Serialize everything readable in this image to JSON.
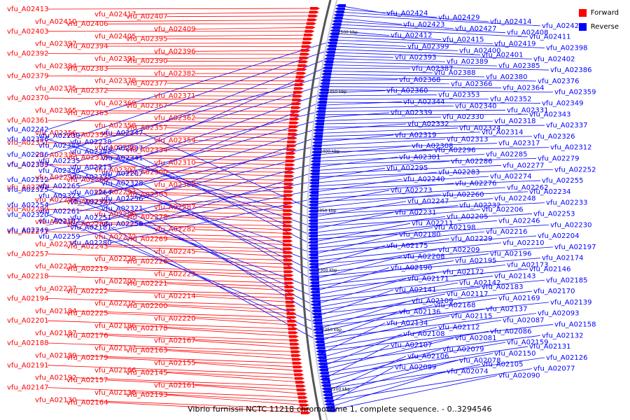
{
  "caption": "Vibrio furnissii NCTC 11218 chromosome 1, complete sequence. - 0..3294546",
  "legend": {
    "forward_label": "Forward",
    "reverse_label": "Reverse",
    "forward_color": "#ff0000",
    "reverse_color": "#0000ff"
  },
  "colors": {
    "backbone": "#555555",
    "ruler": "#cccccc",
    "tick_label": "#000000"
  },
  "kbp_ticks": [
    "2500 kbp",
    "2450 kbp",
    "2400 kbp",
    "2350 kbp",
    "2300 kbp",
    "2250 kbp",
    "2200 kbp"
  ],
  "forward_genes": [
    "vfu_A02413",
    "vfu_A02417",
    "vfu_A02407",
    "vfu_A02410",
    "vfu_A02406",
    "vfu_A02409",
    "vfu_A02403",
    "vfu_A02405",
    "vfu_A02395",
    "vfu_A02397",
    "vfu_A02394",
    "vfu_A02396",
    "vfu_A02392",
    "vfu_A02391",
    "vfu_A02390",
    "vfu_A02384",
    "vfu_A02383",
    "vfu_A02382",
    "vfu_A02379",
    "vfu_A02378",
    "vfu_A02377",
    "vfu_A02375",
    "vfu_A02372",
    "vfu_A02371",
    "vfu_A02370",
    "vfu_A02369",
    "vfu_A02367",
    "vfu_A02365",
    "vfu_A02363",
    "vfu_A02362",
    "vfu_A02361",
    "vfu_A02358",
    "vfu_A02357",
    "vfu_A02356",
    "vfu_A02355",
    "vfu_A02354",
    "vfu_A02351",
    "vfu_A02338",
    "vfu_A02334",
    "vfu_A02315",
    "vfu_A02316",
    "vfu_A02310",
    "vfu_A02309",
    "vfu_A02307",
    "vfu_A02300",
    "vfu_A02298",
    "vfu_A02306",
    "vfu_A02302",
    "vfu_A02292",
    "vfu_A02293",
    "vfu_A02303",
    "vfu_A02297",
    "vfu_A02294",
    "vfu_A02287",
    "vfu_A02289",
    "vfu_A02290",
    "vfu_A02278",
    "vfu_A02291",
    "vfu_A02288",
    "vfu_A02282",
    "vfu_A02271",
    "vfu_A02272",
    "vfu_A02269",
    "vfu_A02275",
    "vfu_A02243",
    "vfu_A02245",
    "vfu_A02257",
    "vfu_A02228",
    "vfu_A02226",
    "vfu_A02224",
    "vfu_A02219",
    "vfu_A02223",
    "vfu_A02218",
    "vfu_A02202",
    "vfu_A02221",
    "vfu_A02227",
    "vfu_A02222",
    "vfu_A02214",
    "vfu_A02194",
    "vfu_A02215",
    "vfu_A02200",
    "vfu_A02184",
    "vfu_A02225",
    "vfu_A02220",
    "vfu_A02201",
    "vfu_A02186",
    "vfu_A02178",
    "vfu_A02187",
    "vfu_A02176",
    "vfu_A02167",
    "vfu_A02188",
    "vfu_A02177",
    "vfu_A02163",
    "vfu_A02189",
    "vfu_A02179",
    "vfu_A02155",
    "vfu_A02191",
    "vfu_A02166",
    "vfu_A02145",
    "vfu_A02192",
    "vfu_A02157",
    "vfu_A02161",
    "vfu_A02147",
    "vfu_A02138",
    "vfu_A02193",
    "vfu_A02130",
    "vfu_A02164"
  ],
  "reverse_genes": [
    "vfu_A02424",
    "vfu_A02429",
    "vfu_A02414",
    "vfu_A02420",
    "vfu_A02423",
    "vfu_A02427",
    "vfu_A02408",
    "vfu_A02411",
    "vfu_A02412",
    "vfu_A02415",
    "vfu_A02419",
    "vfu_A02398",
    "vfu_A02399",
    "vfu_A02400",
    "vfu_A02401",
    "vfu_A02402",
    "vfu_A02393",
    "vfu_A02389",
    "vfu_A02385",
    "vfu_A02386",
    "vfu_A02387",
    "vfu_A02388",
    "vfu_A02380",
    "vfu_A02376",
    "vfu_A02368",
    "vfu_A02366",
    "vfu_A02364",
    "vfu_A02359",
    "vfu_A02360",
    "vfu_A02353",
    "vfu_A02352",
    "vfu_A02349",
    "vfu_A02344",
    "vfu_A02340",
    "vfu_A02331",
    "vfu_A02343",
    "vfu_A02339",
    "vfu_A02330",
    "vfu_A02318",
    "vfu_A02337",
    "vfu_A02332",
    "vfu_A02324",
    "vfu_A02314",
    "vfu_A02326",
    "vfu_A02319",
    "vfu_A02313",
    "vfu_A02317",
    "vfu_A02312",
    "vfu_A02308",
    "vfu_A02296",
    "vfu_A02285",
    "vfu_A02279",
    "vfu_A02301",
    "vfu_A02286",
    "vfu_A02277",
    "vfu_A02252",
    "vfu_A02295",
    "vfu_A02283",
    "vfu_A02274",
    "vfu_A02255",
    "vfu_A02240",
    "vfu_A02276",
    "vfu_A02262",
    "vfu_A02234",
    "vfu_A02273",
    "vfu_A02260",
    "vfu_A02248",
    "vfu_A02233",
    "vfu_A02247",
    "vfu_A02232",
    "vfu_A02206",
    "vfu_A02253",
    "vfu_A02231",
    "vfu_A02205",
    "vfu_A02246",
    "vfu_A02230",
    "vfu_A02211",
    "vfu_A02198",
    "vfu_A02216",
    "vfu_A02204",
    "vfu_A02180",
    "vfu_A02229",
    "vfu_A02210",
    "vfu_A02197",
    "vfu_A02175",
    "vfu_A02209",
    "vfu_A02196",
    "vfu_A02174",
    "vfu_A02208",
    "vfu_A02195",
    "vfu_A02173",
    "vfu_A02146",
    "vfu_A02190",
    "vfu_A02172",
    "vfu_A02143",
    "vfu_A02185",
    "vfu_A02171",
    "vfu_A02142",
    "vfu_A02183",
    "vfu_A02170",
    "vfu_A02141",
    "vfu_A02117",
    "vfu_A02169",
    "vfu_A02139",
    "vfu_A02109",
    "vfu_A02168",
    "vfu_A02137",
    "vfu_A02093",
    "vfu_A02136",
    "vfu_A02115",
    "vfu_A02087",
    "vfu_A02158",
    "vfu_A02134",
    "vfu_A02112",
    "vfu_A02086",
    "vfu_A02132",
    "vfu_A02108",
    "vfu_A02081",
    "vfu_A02159",
    "vfu_A02131",
    "vfu_A02107",
    "vfu_A02079",
    "vfu_A02150",
    "vfu_A02126",
    "vfu_A02106",
    "vfu_A02078",
    "vfu_A02105",
    "vfu_A02077",
    "vfu_A02099",
    "vfu_A02074",
    "vfu_A02090"
  ],
  "forward_left": [
    "vfu_A02242",
    "vfu_A02239",
    "vfu_A02238",
    "vfu_A02237",
    "vfu_A02236",
    "vfu_A02235",
    "vfu_A02213",
    "vfu_A02207",
    "vfu_A02212",
    "vfu_A02265",
    "vfu_A02264",
    "vfu_A02256",
    "vfu_A02254",
    "vfu_A02261",
    "vfu_A02251",
    "vfu_A02258",
    "vfu_A02249",
    "vfu_A02259",
    "vfu_A02280",
    "vfu_A02347",
    "vfu_A02346",
    "vfu_A02345",
    "vfu_A02342",
    "vfu_A02341",
    "vfu_A02333",
    "vfu_A02336",
    "vfu_A02335",
    "vfu_A02328",
    "vfu_A02325",
    "vfu_A02323",
    "vfu_A02327",
    "vfu_A02321",
    "vfu_A02320",
    "vfu_A02182",
    "vfu_A02181"
  ]
}
